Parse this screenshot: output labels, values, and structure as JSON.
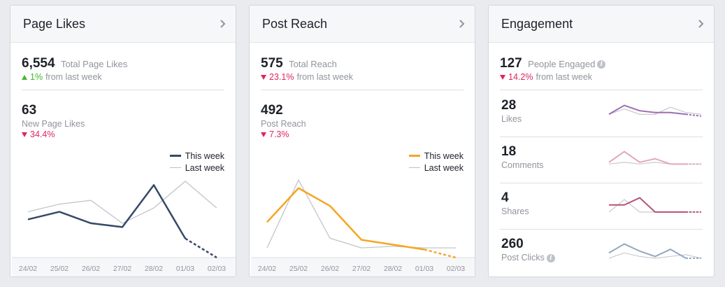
{
  "page_likes": {
    "title": "Page Likes",
    "total_value": "6,554",
    "total_label": "Total Page Likes",
    "total_change": "1%",
    "total_change_dir": "up",
    "change_suffix": "from last week",
    "new_value": "63",
    "new_label": "New Page Likes",
    "new_change": "34.4%",
    "new_change_dir": "down",
    "legend": {
      "this_week": "This week",
      "last_week": "Last week"
    },
    "colors": {
      "this_week": "#364967",
      "last_week": "#c3c5c9"
    },
    "chart_data": {
      "type": "line",
      "x": [
        "24/02",
        "25/02",
        "26/02",
        "27/02",
        "28/02",
        "01/03",
        "02/03"
      ],
      "series": [
        {
          "name": "This week",
          "values": [
            10,
            12,
            9,
            8,
            19,
            5,
            0
          ]
        },
        {
          "name": "Last week",
          "values": [
            12,
            14,
            15,
            9,
            13,
            20,
            13
          ]
        }
      ],
      "ylim": [
        0,
        22
      ]
    }
  },
  "post_reach": {
    "title": "Post Reach",
    "total_value": "575",
    "total_label": "Total Reach",
    "total_change": "23.1%",
    "total_change_dir": "down",
    "change_suffix": "from last week",
    "new_value": "492",
    "new_label": "Post Reach",
    "new_change": "7.3%",
    "new_change_dir": "down",
    "legend": {
      "this_week": "This week",
      "last_week": "Last week"
    },
    "colors": {
      "this_week": "#f5a623",
      "last_week": "#c3c5c9"
    },
    "chart_data": {
      "type": "line",
      "x": [
        "24/02",
        "25/02",
        "26/02",
        "27/02",
        "28/02",
        "01/03",
        "02/03"
      ],
      "series": [
        {
          "name": "This week",
          "values": [
            110,
            215,
            160,
            55,
            40,
            25,
            0
          ]
        },
        {
          "name": "Last week",
          "values": [
            30,
            240,
            60,
            30,
            35,
            30,
            30
          ]
        }
      ],
      "ylim": [
        0,
        260
      ]
    }
  },
  "engagement": {
    "title": "Engagement",
    "total_value": "127",
    "total_label": "People Engaged",
    "total_change": "14.2%",
    "total_change_dir": "down",
    "change_suffix": "from last week",
    "rows": [
      {
        "value": "28",
        "label": "Likes",
        "info": false,
        "color": "#9b6fb2",
        "this_week": [
          5,
          10,
          7,
          6,
          6,
          5,
          4
        ],
        "last_week": [
          5,
          8,
          5,
          5,
          9,
          6,
          5
        ]
      },
      {
        "value": "18",
        "label": "Comments",
        "info": false,
        "color": "#e3a6bd",
        "this_week": [
          4,
          10,
          4,
          6,
          3,
          3,
          3
        ],
        "last_week": [
          3,
          4,
          3,
          4,
          3,
          3,
          3
        ]
      },
      {
        "value": "4",
        "label": "Shares",
        "info": false,
        "color": "#b5527a",
        "this_week": [
          6,
          6,
          10,
          2,
          2,
          2,
          2
        ],
        "last_week": [
          2,
          9,
          2,
          2,
          2,
          2,
          2
        ]
      },
      {
        "value": "260",
        "label": "Post Clicks",
        "info": true,
        "color": "#94a7c2",
        "this_week": [
          5,
          10,
          6,
          3,
          7,
          2,
          2
        ],
        "last_week": [
          2,
          5,
          3,
          2,
          3,
          4,
          2
        ]
      }
    ]
  }
}
